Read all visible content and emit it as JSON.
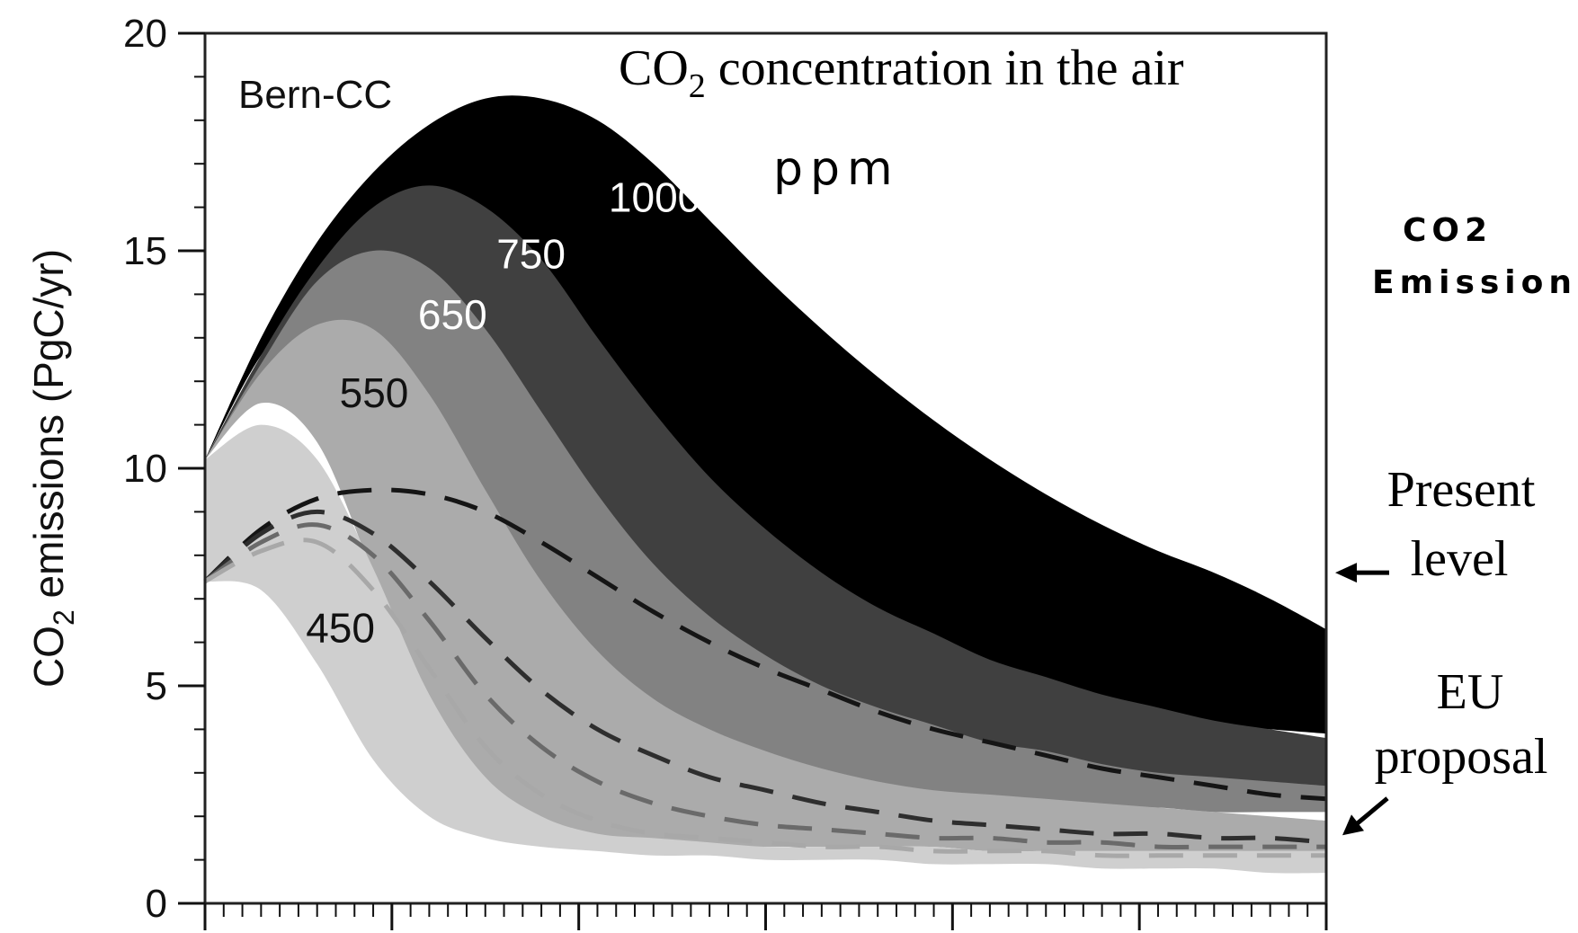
{
  "chart_data": {
    "type": "area",
    "model_label": "Bern-CC",
    "title_prefix": "CO",
    "title_sub": "2",
    "title_suffix": " concentration in the air",
    "unit_note": "ppm",
    "ylabel_prefix": "CO",
    "ylabel_sub": "2",
    "ylabel_suffix": " emissions (PgC/yr)",
    "ylim": [
      0,
      20
    ],
    "yticks": [
      "0",
      "5",
      "10",
      "15",
      "20"
    ],
    "xlim": [
      0,
      1
    ],
    "x": [
      0,
      0.05,
      0.1,
      0.15,
      0.2,
      0.25,
      0.3,
      0.35,
      0.4,
      0.45,
      0.5,
      0.55,
      0.6,
      0.65,
      0.7,
      0.75,
      0.8,
      0.85,
      0.9,
      0.95,
      1.0
    ],
    "series": [
      {
        "name": "1000",
        "color": "#000000",
        "label_color": "#ffffff",
        "upper": [
          10.2,
          13.0,
          15.2,
          16.8,
          17.9,
          18.5,
          18.5,
          18.0,
          17.0,
          15.7,
          14.4,
          13.2,
          12.1,
          11.1,
          10.2,
          9.4,
          8.7,
          8.1,
          7.6,
          7.0,
          6.3
        ],
        "lower": [
          10.2,
          12.6,
          14.0,
          14.4,
          13.4,
          11.3,
          9.0,
          7.4,
          6.4,
          5.8,
          5.4,
          5.1,
          4.9,
          4.7,
          4.6,
          4.4,
          4.3,
          4.2,
          4.1,
          4.0,
          3.9
        ]
      },
      {
        "name": "750",
        "color": "#404040",
        "label_color": "#ffffff",
        "upper": [
          10.2,
          12.6,
          14.6,
          16.0,
          16.5,
          16.0,
          14.8,
          13.0,
          11.3,
          9.8,
          8.6,
          7.6,
          6.8,
          6.2,
          5.6,
          5.2,
          4.8,
          4.5,
          4.2,
          4.0,
          3.8
        ],
        "lower": [
          10.2,
          12.2,
          13.2,
          12.6,
          10.7,
          8.0,
          5.8,
          4.6,
          3.9,
          3.5,
          3.2,
          3.0,
          2.9,
          2.8,
          2.7,
          2.7,
          2.6,
          2.6,
          2.5,
          2.5,
          2.5
        ]
      },
      {
        "name": "650",
        "color": "#828282",
        "label_color": "#ffffff",
        "upper": [
          10.2,
          12.4,
          14.3,
          15.0,
          14.6,
          13.2,
          11.3,
          9.4,
          7.8,
          6.6,
          5.7,
          5.0,
          4.5,
          4.1,
          3.7,
          3.5,
          3.2,
          3.0,
          2.9,
          2.8,
          2.7
        ],
        "lower": [
          10.2,
          12.0,
          12.4,
          10.9,
          8.3,
          5.6,
          3.9,
          3.1,
          2.7,
          2.5,
          2.4,
          2.3,
          2.3,
          2.2,
          2.2,
          2.2,
          2.2,
          2.2,
          2.1,
          2.1,
          2.1
        ]
      },
      {
        "name": "550",
        "color": "#ababab",
        "label_color": "#111111",
        "upper": [
          10.2,
          12.2,
          13.3,
          13.2,
          11.7,
          9.5,
          7.4,
          5.8,
          4.7,
          4.0,
          3.5,
          3.1,
          2.8,
          2.6,
          2.5,
          2.4,
          2.3,
          2.2,
          2.1,
          2.0,
          1.9
        ],
        "lower": [
          10.2,
          11.5,
          10.6,
          7.6,
          4.7,
          2.8,
          1.9,
          1.5,
          1.4,
          1.3,
          1.3,
          1.3,
          1.3,
          1.3,
          1.2,
          1.2,
          1.2,
          1.2,
          1.2,
          1.2,
          1.2
        ]
      },
      {
        "name": "450",
        "color": "#cfcfcf",
        "label_color": "#111111",
        "upper": [
          10.2,
          11.0,
          10.2,
          7.7,
          4.8,
          2.9,
          2.0,
          1.6,
          1.5,
          1.4,
          1.3,
          1.3,
          1.3,
          1.3,
          1.2,
          1.2,
          1.2,
          1.2,
          1.2,
          1.2,
          1.2
        ],
        "lower": [
          7.4,
          7.2,
          5.5,
          3.3,
          2.0,
          1.5,
          1.3,
          1.2,
          1.1,
          1.1,
          1.0,
          1.0,
          1.0,
          0.9,
          0.9,
          0.9,
          0.8,
          0.8,
          0.8,
          0.7,
          0.7
        ]
      }
    ],
    "dashed_lines": [
      {
        "color": "#151515",
        "values": [
          7.4,
          8.6,
          9.3,
          9.5,
          9.4,
          9.0,
          8.3,
          7.5,
          6.7,
          6.0,
          5.4,
          4.9,
          4.4,
          4.0,
          3.7,
          3.4,
          3.1,
          2.9,
          2.7,
          2.5,
          2.4
        ]
      },
      {
        "color": "#2e2e2e",
        "values": [
          7.4,
          8.5,
          9.0,
          8.5,
          7.4,
          6.1,
          4.9,
          4.0,
          3.4,
          2.9,
          2.6,
          2.3,
          2.1,
          1.9,
          1.8,
          1.7,
          1.6,
          1.6,
          1.5,
          1.5,
          1.4
        ]
      },
      {
        "color": "#6a6a6a",
        "values": [
          7.4,
          8.3,
          8.7,
          8.0,
          6.5,
          4.8,
          3.6,
          2.8,
          2.3,
          2.0,
          1.8,
          1.7,
          1.6,
          1.5,
          1.5,
          1.4,
          1.4,
          1.3,
          1.3,
          1.3,
          1.3
        ]
      },
      {
        "color": "#a8a8a8",
        "values": [
          7.4,
          8.1,
          8.3,
          7.2,
          5.4,
          3.6,
          2.5,
          1.9,
          1.6,
          1.5,
          1.4,
          1.3,
          1.3,
          1.2,
          1.2,
          1.2,
          1.1,
          1.1,
          1.1,
          1.1,
          1.1
        ]
      }
    ],
    "side_note_line1": "CO2",
    "side_note_line2": "Emission",
    "present_level_line1": "Present",
    "present_level_line2": "level",
    "eu_proposal_line1": "EU",
    "eu_proposal_line2": "proposal",
    "present_level_value": 7.6,
    "eu_proposal_value": 2.0
  }
}
